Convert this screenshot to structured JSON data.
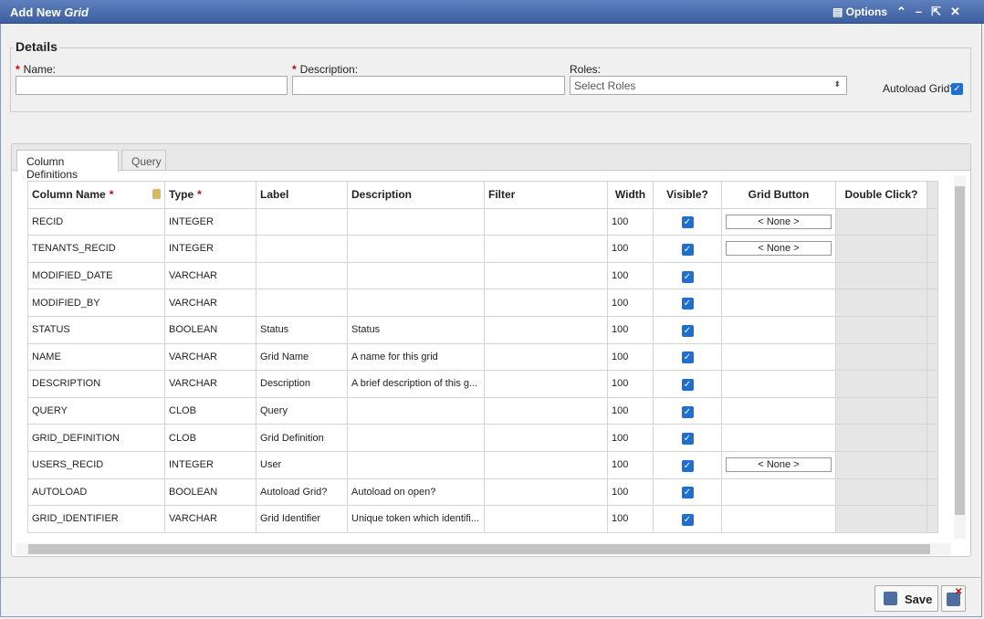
{
  "window": {
    "title": "Add New",
    "title_em": "Grid",
    "options": "Options"
  },
  "details": {
    "legend": "Details",
    "required_mark": "*",
    "name_label": "Name:",
    "description_label": "Description:",
    "roles_label": "Roles:",
    "roles_placeholder": "Select Roles",
    "autoload_label": "Autoload Grid?",
    "autoload": true
  },
  "tabs": [
    "Column Definitions",
    "Query"
  ],
  "table": {
    "headers": [
      {
        "text": "Column Name",
        "required": true,
        "locked": true
      },
      {
        "text": "Type",
        "required": true
      },
      {
        "text": "Label"
      },
      {
        "text": "Description"
      },
      {
        "text": "Filter"
      },
      {
        "text": "Width"
      },
      {
        "text": "Visible?"
      },
      {
        "text": "Grid Button"
      },
      {
        "text": "Double Click?"
      }
    ],
    "rows": [
      {
        "column_name": "RECID",
        "type": "INTEGER",
        "width": 100,
        "visible": true,
        "grid_button": "< None >"
      },
      {
        "column_name": "TENANTS_RECID",
        "type": "INTEGER",
        "width": 100,
        "visible": true,
        "grid_button": "< None >"
      },
      {
        "column_name": "MODIFIED_DATE",
        "type": "VARCHAR",
        "width": 100,
        "visible": true
      },
      {
        "column_name": "MODIFIED_BY",
        "type": "VARCHAR",
        "width": 100,
        "visible": true
      },
      {
        "column_name": "STATUS",
        "type": "BOOLEAN",
        "label": "Status",
        "description": "Status",
        "width": 100,
        "visible": true
      },
      {
        "column_name": "NAME",
        "type": "VARCHAR",
        "label": "Grid Name",
        "description": "A name for this grid",
        "width": 100,
        "visible": true
      },
      {
        "column_name": "DESCRIPTION",
        "type": "VARCHAR",
        "label": "Description",
        "description": "A brief description of this g...",
        "width": 100,
        "visible": true
      },
      {
        "column_name": "QUERY",
        "type": "CLOB",
        "label": "Query",
        "width": 100,
        "visible": true
      },
      {
        "column_name": "GRID_DEFINITION",
        "type": "CLOB",
        "label": "Grid Definition",
        "width": 100,
        "visible": true
      },
      {
        "column_name": "USERS_RECID",
        "type": "INTEGER",
        "label": "User",
        "width": 100,
        "visible": true,
        "grid_button": "< None >"
      },
      {
        "column_name": "AUTOLOAD",
        "type": "BOOLEAN",
        "label": "Autoload Grid?",
        "description": "Autoload on open?",
        "width": 100,
        "visible": true
      },
      {
        "column_name": "GRID_IDENTIFIER",
        "type": "VARCHAR",
        "label": "Grid Identifier",
        "description": "Unique token which identifi...",
        "width": 100,
        "visible": true
      }
    ]
  },
  "footer": {
    "save": "Save"
  }
}
